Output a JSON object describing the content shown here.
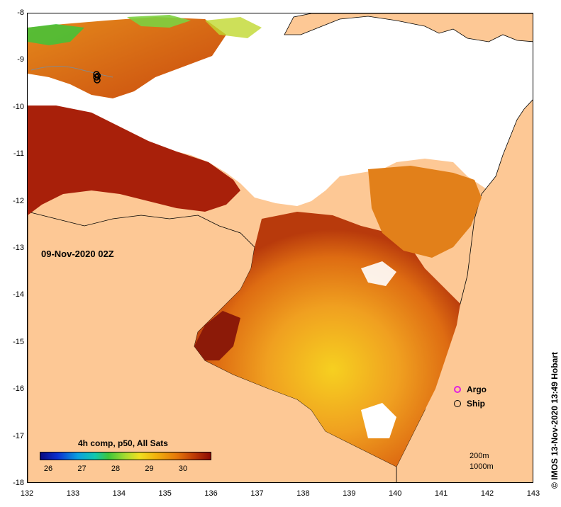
{
  "map": {
    "date_label": "09-Nov-2020 02Z",
    "x_ticks": [
      "132",
      "133",
      "134",
      "135",
      "136",
      "137",
      "138",
      "139",
      "140",
      "141",
      "142",
      "143"
    ],
    "y_ticks": [
      "-8",
      "-9",
      "-10",
      "-11",
      "-12",
      "-13",
      "-14",
      "-15",
      "-16",
      "-17",
      "-18"
    ]
  },
  "colorbar": {
    "title": "4h comp, p50, All Sats",
    "ticks": [
      "26",
      "27",
      "28",
      "29",
      "30"
    ]
  },
  "legend": {
    "argo_label": "Argo",
    "ship_label": "Ship",
    "argo_color": "#e020e0",
    "ship_color": "#000000"
  },
  "depth_legend": {
    "contour_200": "200m",
    "contour_1000": "1000m"
  },
  "copyright": "© IMOS 13-Nov-2020 13:49 Hobart",
  "colors": {
    "land": "#fdc895",
    "no_data": "#ffffff",
    "sst_hot": "#a8200a",
    "sst_mid": "#de6c12",
    "sst_warm": "#f0a020",
    "sst_cool": "#f6d020"
  }
}
